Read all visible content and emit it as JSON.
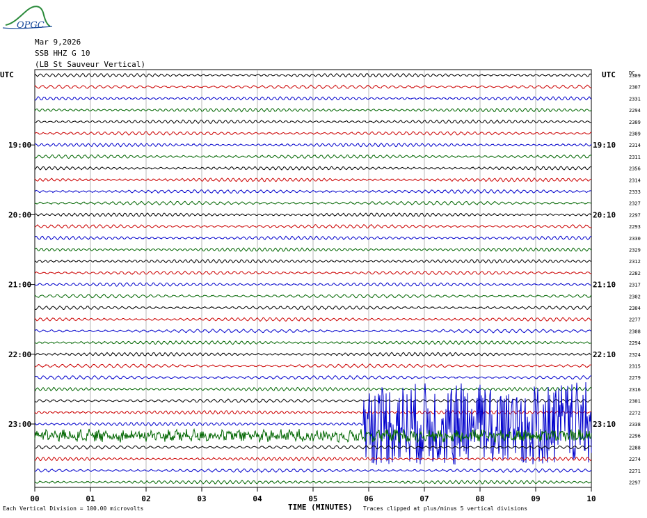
{
  "logo": {
    "text": "OPGC"
  },
  "header": {
    "date": "Mar 9,2026",
    "station": "SSB HHZ G 10",
    "location": "(LB  St Sauveur Vertical)"
  },
  "left_axis_label": "UTC",
  "right_axis_label": "UTC",
  "dc_label": "DC",
  "footer": {
    "scale_note": "Each Vertical Division =  100.00 microvolts",
    "xlabel": "TIME (MINUTES)",
    "clip_note": "Traces clipped at plus/minus 5 vertical divisions"
  },
  "chart_data": {
    "type": "line",
    "title": "",
    "xlabel": "TIME (MINUTES)",
    "ylabel": "UTC",
    "xlim": [
      0,
      10
    ],
    "x_ticks": [
      "00",
      "01",
      "02",
      "03",
      "04",
      "05",
      "06",
      "07",
      "08",
      "09",
      "10"
    ],
    "trace_colors": [
      "#000000",
      "#cc0000",
      "#0000cc",
      "#006600"
    ],
    "left_hour_labels": [
      {
        "trace_index": 6,
        "label": "19:00"
      },
      {
        "trace_index": 12,
        "label": "20:00"
      },
      {
        "trace_index": 18,
        "label": "21:00"
      },
      {
        "trace_index": 24,
        "label": "22:00"
      },
      {
        "trace_index": 30,
        "label": "23:00"
      }
    ],
    "right_hour_labels": [
      {
        "trace_index": 6,
        "label": "19:10"
      },
      {
        "trace_index": 12,
        "label": "20:10"
      },
      {
        "trace_index": 18,
        "label": "21:10"
      },
      {
        "trace_index": 24,
        "label": "22:10"
      },
      {
        "trace_index": 30,
        "label": "23:10"
      }
    ],
    "dc_offsets": [
      2309,
      2307,
      2331,
      2294,
      2309,
      2309,
      2314,
      2311,
      2356,
      2314,
      2333,
      2327,
      2297,
      2293,
      2330,
      2329,
      2312,
      2282,
      2317,
      2302,
      2304,
      2277,
      2308,
      2294,
      2324,
      2315,
      2279,
      2316,
      2301,
      2272,
      2338,
      2296,
      2288,
      2274,
      2271,
      2297
    ],
    "events": [
      {
        "trace_index": 31,
        "start_min": 0.0,
        "end_min": 10.0,
        "description_level": "elevated"
      },
      {
        "trace_index": 30,
        "start_min": 5.9,
        "end_min": 10.0,
        "description_level": "clipped"
      },
      {
        "trace_index": 30,
        "start_min": 7.5,
        "end_min": 9.0,
        "description_level": "clipped"
      }
    ]
  }
}
